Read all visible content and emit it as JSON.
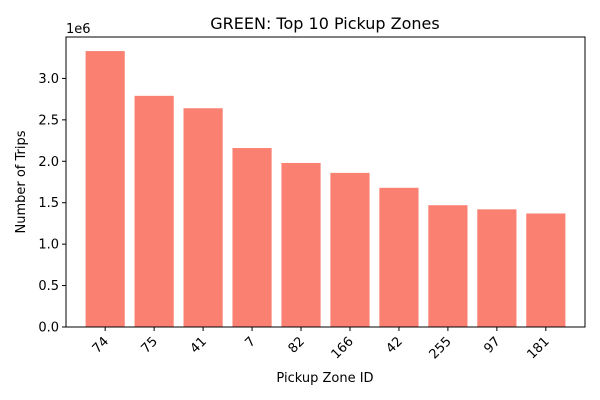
{
  "chart_data": {
    "type": "bar",
    "title": "GREEN: Top 10 Pickup Zones",
    "xlabel": "Pickup Zone ID",
    "ylabel": "Number of Trips",
    "y_multiplier": "1e6",
    "categories": [
      "74",
      "75",
      "41",
      "7",
      "82",
      "166",
      "42",
      "255",
      "97",
      "181"
    ],
    "values": [
      3.33,
      2.79,
      2.64,
      2.16,
      1.98,
      1.86,
      1.68,
      1.47,
      1.42,
      1.37
    ],
    "ylim": [
      0,
      3.5
    ],
    "yticks": [
      "0.0",
      "0.5",
      "1.0",
      "1.5",
      "2.0",
      "2.5",
      "3.0"
    ],
    "bar_color": "#fa8072",
    "grid": false,
    "legend": "none"
  }
}
